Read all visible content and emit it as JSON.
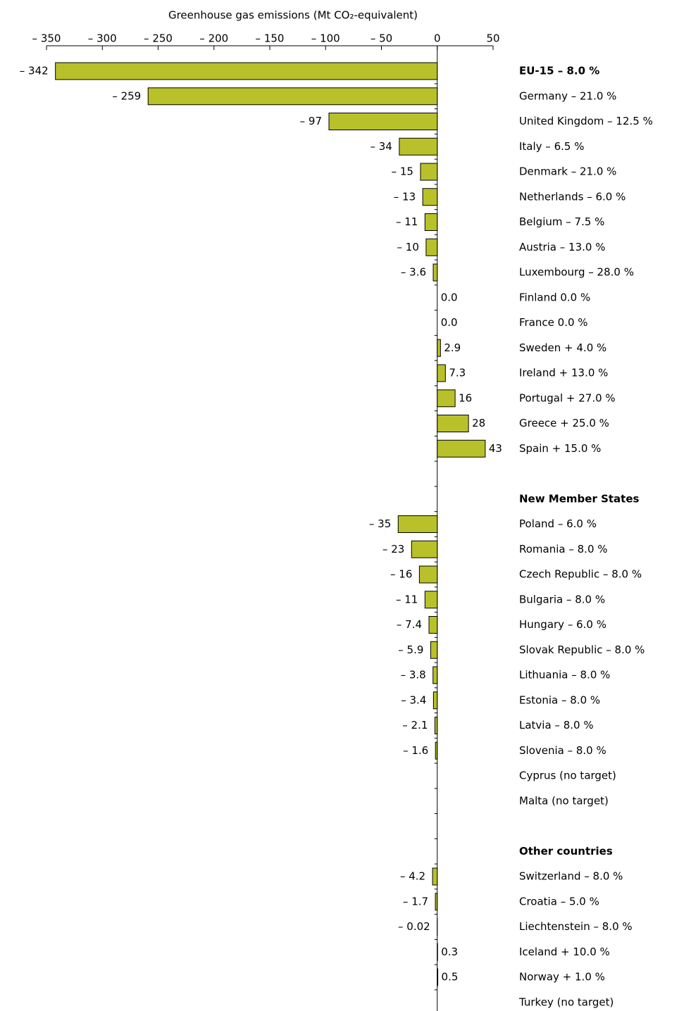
{
  "chart_data": {
    "type": "hbar",
    "x_label": "Greenhouse gas emissions (Mt CO₂-equivalent)",
    "xlim": [
      -350,
      50
    ],
    "xticks": [
      {
        "value": -350,
        "label": "– 350"
      },
      {
        "value": -300,
        "label": "– 300"
      },
      {
        "value": -250,
        "label": "– 250"
      },
      {
        "value": -200,
        "label": "– 200"
      },
      {
        "value": -150,
        "label": "– 150"
      },
      {
        "value": -100,
        "label": "– 100"
      },
      {
        "value": -50,
        "label": "– 50"
      },
      0,
      50
    ],
    "color": "#b8c12a",
    "bold": [
      0,
      17,
      31
    ],
    "categories": [
      "EU-15 – 8.0 %",
      "Germany – 21.0 %",
      "United Kingdom – 12.5 %",
      "Italy – 6.5 %",
      "Denmark – 21.0 %",
      "Netherlands – 6.0 %",
      "Belgium – 7.5 %",
      "Austria – 13.0 %",
      "Luxembourg – 28.0 %",
      "Finland 0.0 %",
      "France 0.0 %",
      "Sweden + 4.0 %",
      "Ireland + 13.0 %",
      "Portugal + 27.0 %",
      "Greece + 25.0 %",
      "Spain + 15.0 %",
      null,
      "New Member States",
      "Poland – 6.0 %",
      "Romania – 8.0 %",
      "Czech Republic – 8.0 %",
      "Bulgaria – 8.0 %",
      "Hungary – 6.0 %",
      "Slovak Republic – 8.0 %",
      "Lithuania – 8.0 %",
      "Estonia – 8.0 %",
      "Latvia – 8.0 %",
      "Slovenia – 8.0 %",
      "Cyprus (no target)",
      "Malta (no target)",
      null,
      "Other countries",
      "Switzerland – 8.0 %",
      "Croatia – 5.0 %",
      "Liechtenstein – 8.0 %",
      "Iceland + 10.0 %",
      "Norway + 1.0 %",
      "Turkey (no target)"
    ],
    "values": [
      -342,
      -259,
      -97,
      -34,
      -15,
      -13,
      -11,
      -10,
      -3.6,
      0.0,
      0.0,
      2.9,
      7.3,
      16,
      28,
      43,
      null,
      null,
      -35,
      -23,
      -16,
      -11,
      -7.4,
      -5.9,
      -3.8,
      -3.4,
      -2.1,
      -1.6,
      null,
      null,
      null,
      null,
      -4.2,
      -1.7,
      -0.02,
      0.3,
      0.5,
      null
    ],
    "value_labels": [
      "– 342",
      "– 259",
      "– 97",
      "– 34",
      "– 15",
      "– 13",
      "– 11",
      "– 10",
      "– 3.6",
      "0.0",
      "0.0",
      "2.9",
      "7.3",
      "16",
      "28",
      "43",
      null,
      null,
      "– 35",
      "– 23",
      "– 16",
      "– 11",
      "– 7.4",
      "– 5.9",
      "– 3.8",
      "– 3.4",
      "– 2.1",
      "– 1.6",
      null,
      null,
      null,
      null,
      "– 4.2",
      "– 1.7",
      "– 0.02",
      "0.3",
      "0.5",
      null
    ]
  }
}
